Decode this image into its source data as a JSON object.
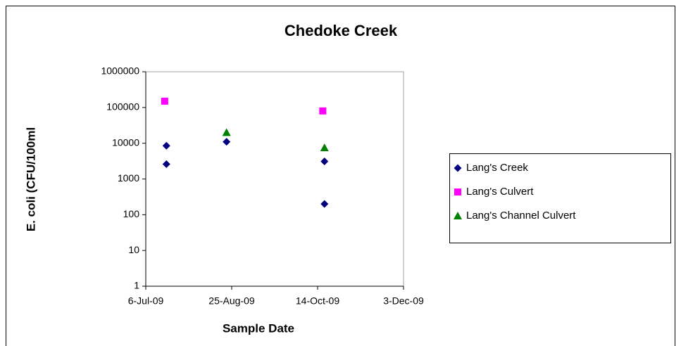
{
  "chart_data": {
    "type": "scatter",
    "title": "Chedoke Creek",
    "x_label": "Sample Date",
    "y_label": "E. coli (CFU/100ml",
    "y_scale": "log",
    "xlim": [
      "2009-07-06",
      "2009-12-03"
    ],
    "xticks": [
      {
        "value": "2009-07-06",
        "label": "6-Jul-09"
      },
      {
        "value": "2009-08-25",
        "label": "25-Aug-09"
      },
      {
        "value": "2009-10-14",
        "label": "14-Oct-09"
      },
      {
        "value": "2009-12-03",
        "label": "3-Dec-09"
      }
    ],
    "ylim": [
      1,
      1000000
    ],
    "yticks": [
      1,
      10,
      100,
      1000,
      10000,
      100000,
      1000000
    ],
    "grid": false,
    "legend": "right",
    "series": [
      {
        "name": "Lang's Creek",
        "color": "#000080",
        "marker": "diamond",
        "x": [
          "2009-07-18",
          "2009-07-18",
          "2009-08-22",
          "2009-10-18",
          "2009-10-18"
        ],
        "values": [
          8500,
          2600,
          11000,
          3100,
          200
        ]
      },
      {
        "name": "Lang's Culvert",
        "color": "#ff00ff",
        "marker": "square",
        "x": [
          "2009-07-17",
          "2009-10-17"
        ],
        "values": [
          150000,
          80000
        ]
      },
      {
        "name": "Lang's Channel Culvert",
        "color": "#008000",
        "marker": "triangle",
        "x": [
          "2009-08-22",
          "2009-10-18"
        ],
        "values": [
          20000,
          7500
        ]
      }
    ]
  }
}
